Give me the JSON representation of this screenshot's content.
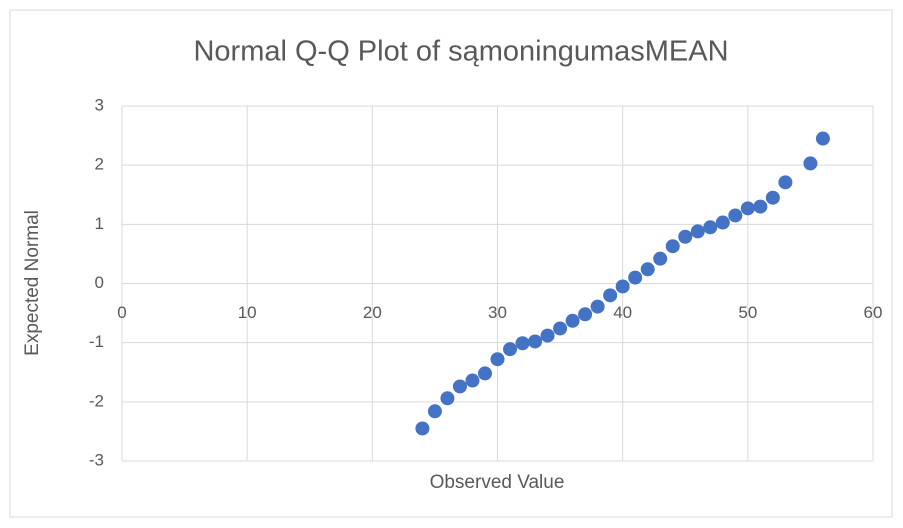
{
  "chart_data": {
    "type": "scatter",
    "title": "Normal Q-Q Plot of sąmoningumasMEAN",
    "x_label": "Observed Value",
    "y_label": "Expected Normal",
    "series": [
      {
        "name": "sąmoningumasMEAN",
        "color": "#4472c4",
        "x": [
          24,
          25,
          26,
          27,
          28,
          29,
          30,
          31,
          32,
          33,
          34,
          35,
          36,
          37,
          38,
          39,
          40,
          41,
          42,
          43,
          44,
          45,
          46,
          47,
          48,
          49,
          50,
          51,
          52,
          53,
          55,
          56
        ],
        "values": [
          -2.45,
          -2.16,
          -1.94,
          -1.74,
          -1.64,
          -1.52,
          -1.28,
          -1.11,
          -1.01,
          -0.98,
          -0.88,
          -0.76,
          -0.63,
          -0.52,
          -0.39,
          -0.2,
          -0.05,
          0.1,
          0.24,
          0.42,
          0.63,
          0.79,
          0.88,
          0.95,
          1.03,
          1.15,
          1.27,
          1.3,
          1.45,
          1.71,
          2.03,
          2.45
        ]
      }
    ],
    "xlim": [
      0,
      60
    ],
    "xticks": [
      0,
      10,
      20,
      30,
      40,
      50,
      60
    ],
    "ylim": [
      -3,
      3
    ],
    "yticks": [
      -3,
      -2,
      -1,
      0,
      1,
      2,
      3
    ],
    "grid": true
  }
}
